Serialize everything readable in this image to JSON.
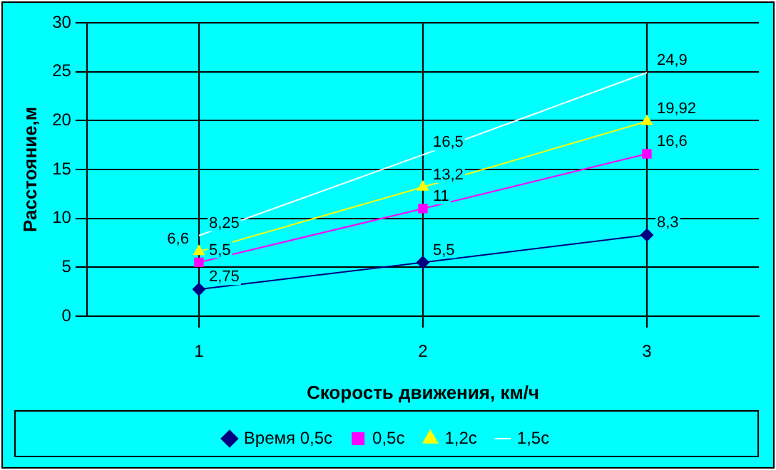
{
  "chart_data": {
    "type": "line",
    "xlabel": "Скорость движения, км/ч",
    "ylabel": "Расстояние,м",
    "categories": [
      "1",
      "2",
      "3"
    ],
    "series": [
      {
        "name": "Время 0,5с",
        "color": "#000080",
        "marker": "diamond",
        "values": [
          2.75,
          5.5,
          8.3
        ],
        "value_labels": [
          "2,75",
          "5,5",
          "8,3"
        ]
      },
      {
        "name": "0,5с",
        "color": "#ff00ff",
        "marker": "square",
        "values": [
          5.5,
          11,
          16.6
        ],
        "value_labels": [
          "5,5",
          "11",
          "16,6"
        ]
      },
      {
        "name": "1,2с",
        "color": "#ffff00",
        "marker": "triangle",
        "values": [
          6.6,
          13.2,
          19.92
        ],
        "value_labels": [
          "6,6",
          "13,2",
          "19,92"
        ]
      },
      {
        "name": "1,5с",
        "color": "#ffffff",
        "marker": "none",
        "values": [
          8.25,
          16.5,
          24.9
        ],
        "value_labels": [
          "8,25",
          "16,5",
          "24,9"
        ]
      }
    ],
    "ylim": [
      0,
      30
    ],
    "yticks": [
      0,
      5,
      10,
      15,
      20,
      25,
      30
    ],
    "grid": true,
    "legend": "bottom"
  }
}
